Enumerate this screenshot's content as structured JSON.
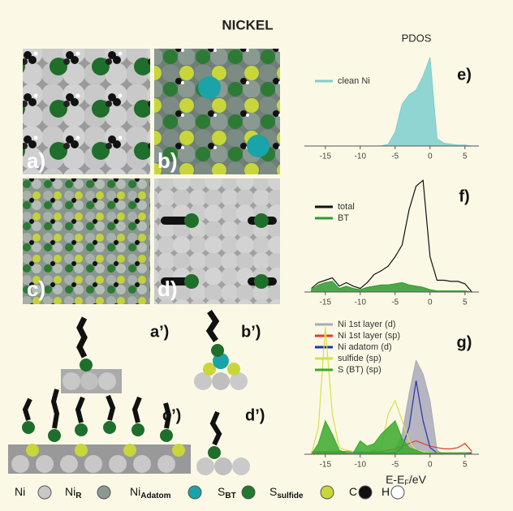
{
  "title": "NICKEL",
  "panels": [
    "a)",
    "b)",
    "c)",
    "d)",
    "a’)",
    "b’)",
    "c’)",
    "d’)"
  ],
  "atoms": [
    {
      "symbol": "Ni",
      "color": "#c8c8c8"
    },
    {
      "symbol": "Ni",
      "sub": "R",
      "color": "#8a9a92"
    },
    {
      "symbol": "Ni",
      "sub": "Adatom",
      "color": "#1aa3a8"
    },
    {
      "symbol": "S",
      "sub": "BT",
      "color": "#1f7a30"
    },
    {
      "symbol": "S",
      "sub": "sulfide",
      "color": "#c8d63a"
    },
    {
      "symbol": "C",
      "color": "#111111"
    },
    {
      "symbol": "H",
      "color": "#ffffff"
    }
  ],
  "chart_data": [
    {
      "type": "line",
      "title": "PDOS",
      "panel_label": "e)",
      "x": [
        -17,
        -16,
        -15,
        -14,
        -13,
        -12,
        -11,
        -10,
        -9,
        -8,
        -7,
        -6,
        -5,
        -4,
        -3,
        -2,
        -1,
        0,
        1,
        2,
        3,
        4,
        5,
        6
      ],
      "xlim": [
        -18,
        7
      ],
      "xticks": [
        -15,
        -10,
        -5,
        0,
        5
      ],
      "ylim": [
        0,
        100
      ],
      "series": [
        {
          "name": "clean Ni",
          "color": "#7ecfcf",
          "style": "area",
          "values": [
            0,
            0,
            0,
            0,
            0,
            0,
            0,
            0,
            0,
            0,
            0,
            2,
            15,
            45,
            55,
            60,
            75,
            95,
            8,
            3,
            2,
            1,
            1,
            0
          ]
        }
      ]
    },
    {
      "type": "line",
      "panel_label": "f)",
      "x": [
        -17,
        -16,
        -15,
        -14,
        -13,
        -12,
        -11,
        -10,
        -9,
        -8,
        -7,
        -6,
        -5,
        -4,
        -3,
        -2,
        -1,
        0,
        1,
        2,
        3,
        4,
        5,
        6
      ],
      "xlim": [
        -18,
        7
      ],
      "xticks": [
        -15,
        -10,
        -5,
        0,
        5
      ],
      "ylim": [
        0,
        100
      ],
      "series": [
        {
          "name": "total",
          "color": "#111111",
          "style": "line",
          "values": [
            3,
            8,
            10,
            12,
            5,
            8,
            5,
            3,
            8,
            15,
            18,
            22,
            30,
            40,
            70,
            90,
            95,
            30,
            10,
            10,
            9,
            9,
            7,
            0
          ]
        },
        {
          "name": "BT",
          "color": "#2e9a2e",
          "style": "area",
          "values": [
            2,
            6,
            8,
            9,
            3,
            5,
            3,
            2,
            4,
            5,
            6,
            6,
            7,
            8,
            6,
            5,
            4,
            2,
            1,
            1,
            1,
            1,
            1,
            0
          ]
        }
      ]
    },
    {
      "type": "line",
      "panel_label": "g)",
      "xlabel": "E-E",
      "xlabel_sub": "F",
      "xlabel_unit": "/eV",
      "x": [
        -17,
        -16,
        -15,
        -14,
        -13,
        -12,
        -11,
        -10,
        -9,
        -8,
        -7,
        -6,
        -5,
        -4,
        -3,
        -2,
        -1,
        0,
        1,
        2,
        3,
        4,
        5,
        6
      ],
      "xlim": [
        -18,
        7
      ],
      "xticks": [
        -15,
        -10,
        -5,
        0,
        5
      ],
      "ylim": [
        0,
        100
      ],
      "series": [
        {
          "name": "Ni 1st layer (d)",
          "color": "#a9a9b9",
          "style": "area",
          "values": [
            0,
            0,
            0,
            0,
            0,
            0,
            0,
            0,
            0,
            0,
            0,
            0,
            3,
            15,
            45,
            70,
            60,
            40,
            3,
            0,
            0,
            0,
            0,
            0
          ]
        },
        {
          "name": "Ni 1st layer (sp)",
          "color": "#e83a2a",
          "style": "line",
          "values": [
            2,
            2,
            2,
            2,
            2,
            2,
            2,
            2,
            2,
            2,
            2,
            3,
            4,
            6,
            8,
            10,
            8,
            6,
            5,
            4,
            4,
            5,
            8,
            2
          ]
        },
        {
          "name": "Ni adatom (d)",
          "color": "#2233aa",
          "style": "line",
          "values": [
            1,
            1,
            1,
            1,
            1,
            1,
            1,
            1,
            1,
            1,
            1,
            1,
            1,
            5,
            20,
            55,
            25,
            5,
            1,
            1,
            1,
            1,
            1,
            1
          ]
        },
        {
          "name": "sulfide (sp)",
          "color": "#d6e04a",
          "style": "line",
          "values": [
            0,
            20,
            95,
            30,
            5,
            3,
            2,
            2,
            2,
            3,
            5,
            30,
            40,
            25,
            10,
            3,
            2,
            1,
            1,
            1,
            1,
            1,
            1,
            0
          ]
        },
        {
          "name": "S (BT) (sp)",
          "color": "#3aaa2a",
          "style": "area",
          "values": [
            0,
            8,
            25,
            15,
            3,
            1,
            1,
            10,
            6,
            8,
            15,
            20,
            25,
            12,
            5,
            3,
            1,
            1,
            1,
            1,
            1,
            1,
            1,
            0
          ]
        }
      ]
    }
  ]
}
